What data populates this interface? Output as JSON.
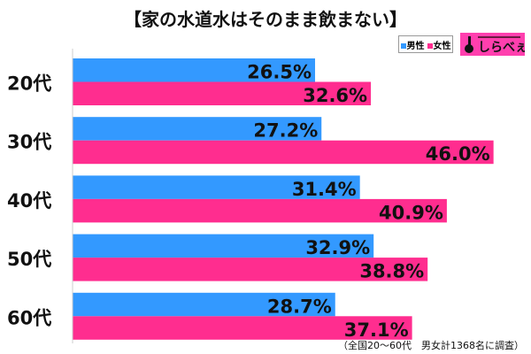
{
  "chart_data": {
    "type": "bar",
    "orientation": "horizontal",
    "title": "【家の水道水はそのまま飲まない】",
    "categories": [
      "20代",
      "30代",
      "40代",
      "50代",
      "60代"
    ],
    "series": [
      {
        "name": "男性",
        "color": "#3399ff",
        "values": [
          26.5,
          27.2,
          31.4,
          32.9,
          28.7
        ]
      },
      {
        "name": "女性",
        "color": "#ff2d8f",
        "values": [
          32.6,
          46.0,
          40.9,
          38.8,
          37.1
        ]
      }
    ],
    "value_suffix": "%",
    "xlim": [
      0,
      50
    ],
    "grid": false,
    "legend": "top-right",
    "footnote": "（全国20～60代　男女計1368名に調査）"
  },
  "logo": {
    "text": "しらべぇ"
  }
}
